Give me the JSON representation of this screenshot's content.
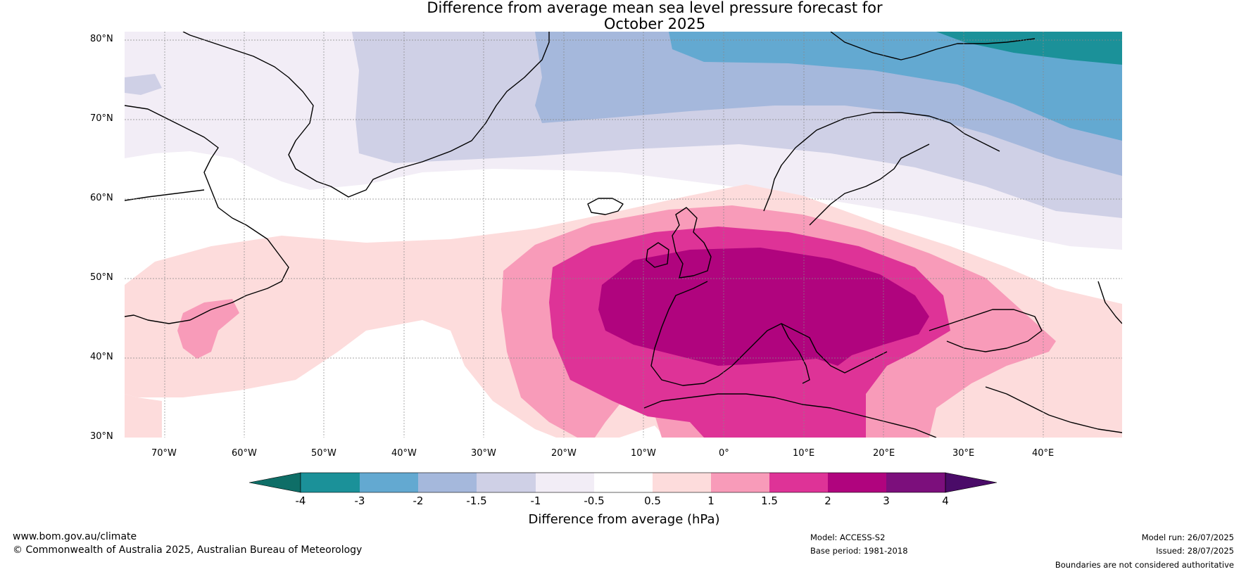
{
  "title": {
    "line1": "Difference from average mean sea level pressure forecast for",
    "line2": "October 2025"
  },
  "map": {
    "lat_labels": [
      "80°N",
      "70°N",
      "60°N",
      "50°N",
      "40°N",
      "30°N"
    ],
    "lon_labels": [
      "70°W",
      "60°W",
      "50°W",
      "40°W",
      "30°W",
      "20°W",
      "10°W",
      "0°",
      "10°E",
      "20°E",
      "30°E",
      "40°E"
    ],
    "extent": {
      "lon_min": -75,
      "lon_max": 50,
      "lat_min": 30,
      "lat_max": 81
    },
    "color_scale": [
      {
        "range": "< -4",
        "color": "#0e6e67"
      },
      {
        "range": "-4 to -3",
        "color": "#1b9199"
      },
      {
        "range": "-3 to -2",
        "color": "#63a9d1"
      },
      {
        "range": "-2 to -1.5",
        "color": "#a5b8dc"
      },
      {
        "range": "-1.5 to -1",
        "color": "#cfd0e6"
      },
      {
        "range": "-1 to -0.5",
        "color": "#f2edf6"
      },
      {
        "range": "-0.5 to 0.5",
        "color": "#ffffff"
      },
      {
        "range": "0.5 to 1",
        "color": "#fddcdc"
      },
      {
        "range": "1 to 1.5",
        "color": "#f89bb9"
      },
      {
        "range": "1.5 to 2",
        "color": "#de3397"
      },
      {
        "range": "2 to 3",
        "color": "#b0047e"
      },
      {
        "range": "3 to 4",
        "color": "#7c0f7c"
      },
      {
        "range": "> 4",
        "color": "#4a0b68"
      }
    ]
  },
  "colorbar": {
    "ticks": [
      "-4",
      "-3",
      "-2",
      "-1.5",
      "-1",
      "-0.5",
      "0.5",
      "1",
      "1.5",
      "2",
      "3",
      "4"
    ],
    "label": "Difference from average (hPa)"
  },
  "footer": {
    "url": "www.bom.gov.au/climate",
    "copyright": "© Commonwealth of Australia 2025, Australian Bureau of Meteorology",
    "model": "Model: ACCESS-S2",
    "base_period": "Base period: 1981-2018",
    "model_run": "Model run: 26/07/2025",
    "issued": "Issued: 28/07/2025",
    "disclaimer": "Boundaries are not considered authoritative"
  }
}
